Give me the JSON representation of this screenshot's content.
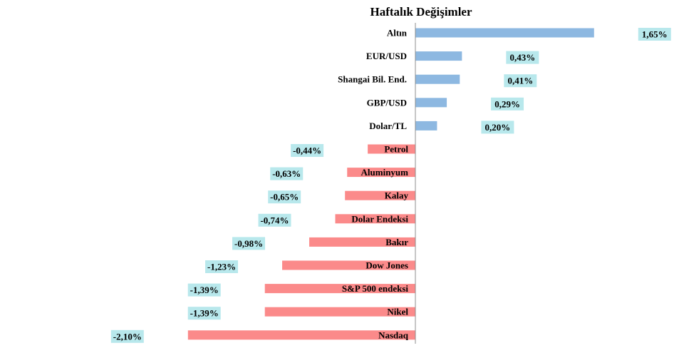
{
  "chart_data": {
    "type": "bar",
    "orientation": "horizontal",
    "title": "Haftalık Değişimler",
    "xlabel": "",
    "ylabel": "",
    "unit": "%",
    "xlim": [
      -2.1,
      1.65
    ],
    "grid": false,
    "legend": "none",
    "categories": [
      "Altın",
      "EUR/USD",
      "Shangai Bil. End.",
      "GBP/USD",
      "Dolar/TL",
      "Petrol",
      "Aluminyum",
      "Kalay",
      "Dolar Endeksi",
      "Bakır",
      "Dow Jones",
      "S&P 500 endeksi",
      "Nikel",
      "Nasdaq"
    ],
    "values": [
      1.65,
      0.43,
      0.41,
      0.29,
      0.2,
      -0.44,
      -0.63,
      -0.65,
      -0.74,
      -0.98,
      -1.23,
      -1.39,
      -1.39,
      -2.1
    ],
    "labels": [
      "1,65%",
      "0,43%",
      "0,41%",
      "0,29%",
      "0,20%",
      "-0,44%",
      "-0,63%",
      "-0,65%",
      "-0,74%",
      "-0,98%",
      "-1,23%",
      "-1,39%",
      "-1,39%",
      "-2,10%"
    ],
    "colors": {
      "positive": "#8db8e1",
      "negative": "#fb8a8a",
      "label_bg": "#b8e8ec",
      "axis": "#8c8c8c"
    }
  }
}
